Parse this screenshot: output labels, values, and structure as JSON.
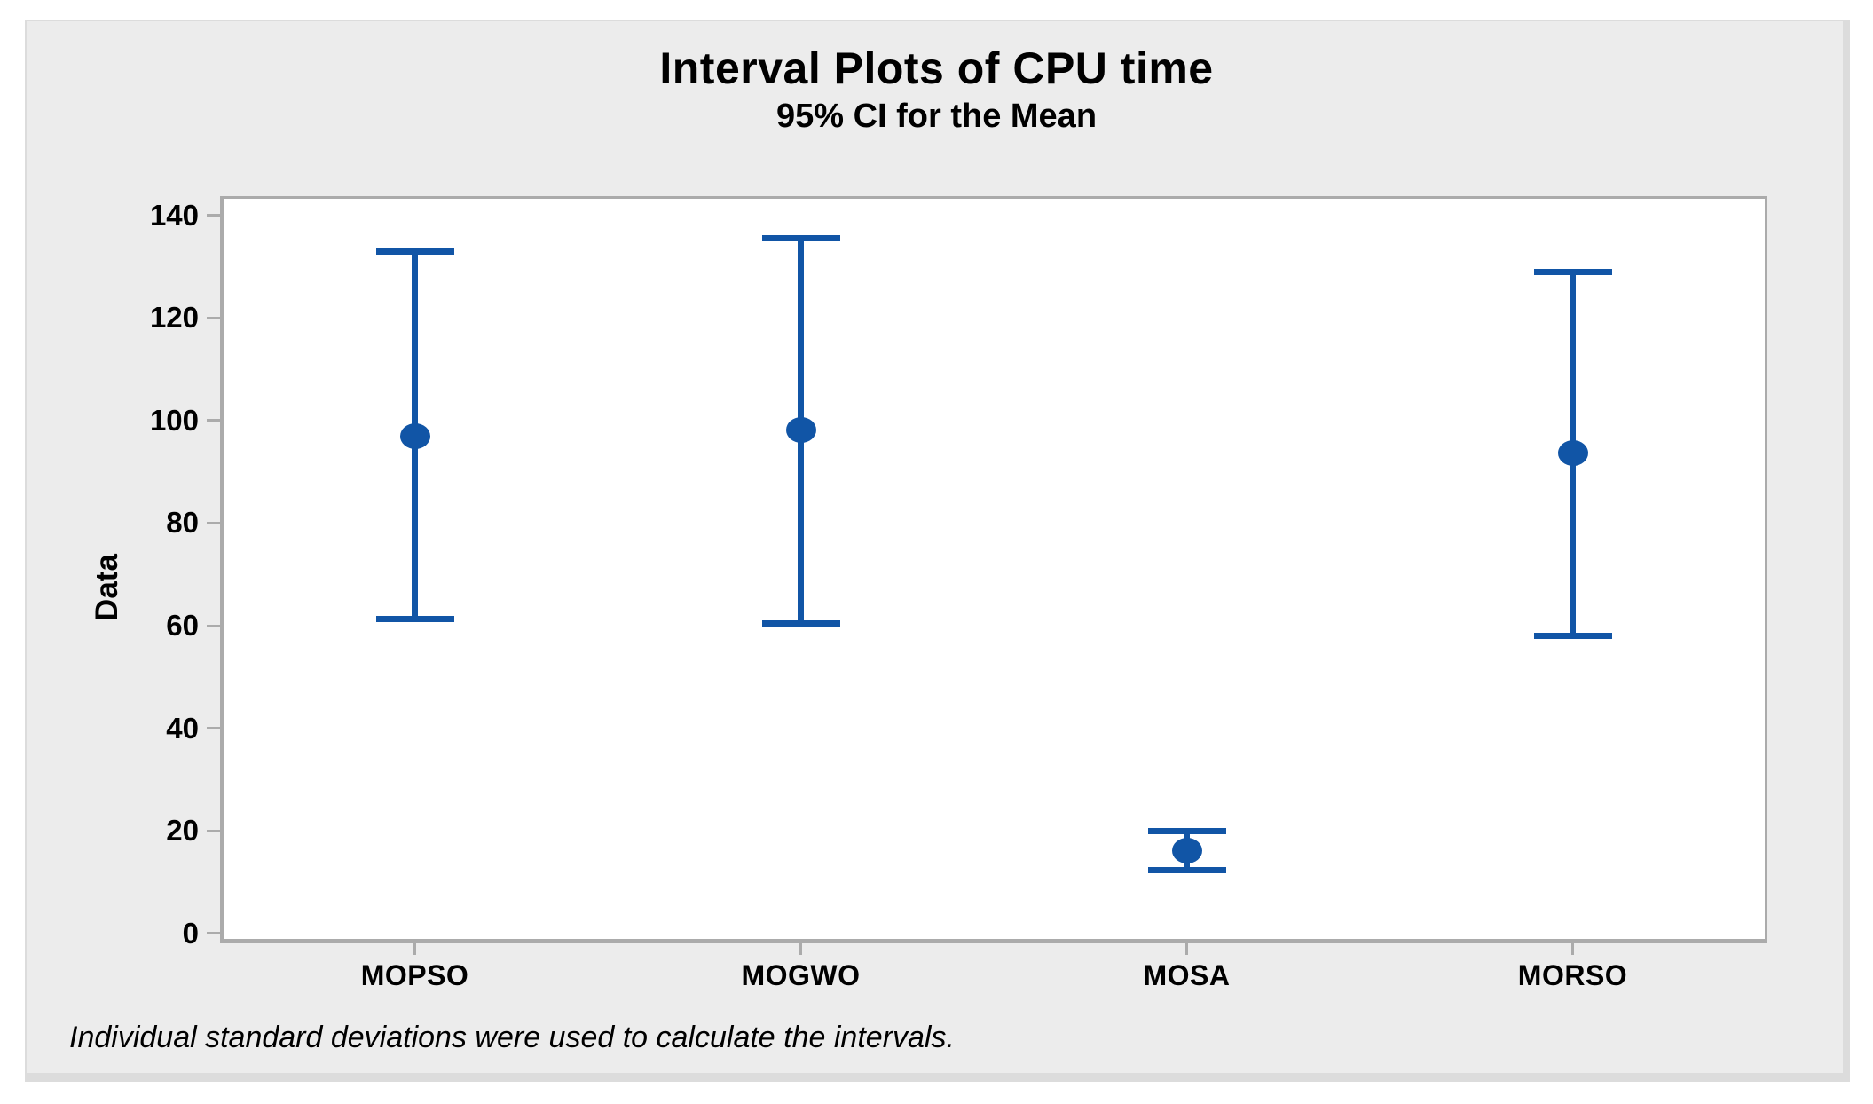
{
  "chart_data": {
    "type": "interval",
    "title": "Interval Plots of CPU time",
    "subtitle": "95% CI for the Mean",
    "ylabel": "Data",
    "xlabel": "",
    "categories": [
      "MOPSO",
      "MOGWO",
      "MOSA",
      "MORSO"
    ],
    "series": [
      {
        "name": "95% CI for the Mean",
        "means": [
          96.9,
          98.1,
          16.1,
          93.6
        ],
        "ci_lower": [
          61.3,
          60.4,
          12.4,
          58.1
        ],
        "ci_upper": [
          132.9,
          135.5,
          19.9,
          128.9
        ]
      }
    ],
    "yticks": [
      0,
      20,
      40,
      60,
      80,
      100,
      120,
      140
    ],
    "ylim": [
      -1.4,
      143.4
    ],
    "grid": false,
    "legend": "none",
    "footnote": "Individual standard deviations were used to calculate the intervals.",
    "colors": {
      "interval": "#1155A6",
      "axis": "#ABABAB",
      "panel_bg": "#ECECEC",
      "plot_bg": "#FFFFFF",
      "text": "#000000"
    }
  }
}
